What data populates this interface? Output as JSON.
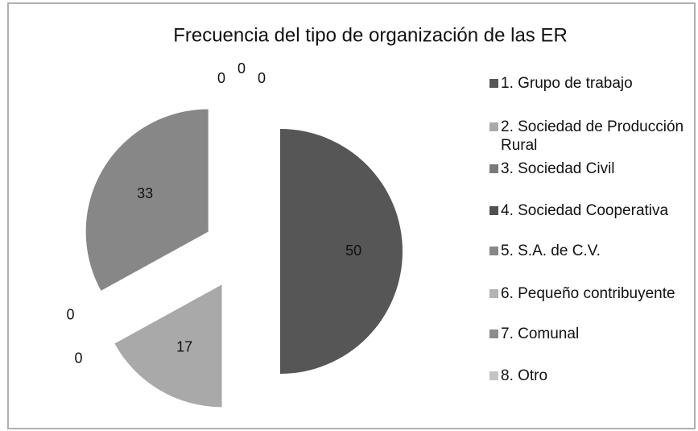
{
  "chart_data": {
    "type": "pie",
    "title": "Frecuencia del tipo de organización de las ER",
    "categories": [
      "1. Grupo de trabajo",
      "2. Sociedad de Producción Rural",
      "3. Sociedad Civil",
      "4. Sociedad Cooperativa",
      "5. S.A. de C.V.",
      "6. Pequeño contribuyente",
      "7. Comunal",
      "8. Otro"
    ],
    "values": [
      50,
      17,
      0,
      0,
      33,
      0,
      0,
      0
    ],
    "colors": [
      "#565656",
      "#a9a9a9",
      "#7a7a7a",
      "#505050",
      "#878787",
      "#b4b4b4",
      "#8c8c8c",
      "#c4c4c4"
    ],
    "exploded": true,
    "legend": "right"
  }
}
